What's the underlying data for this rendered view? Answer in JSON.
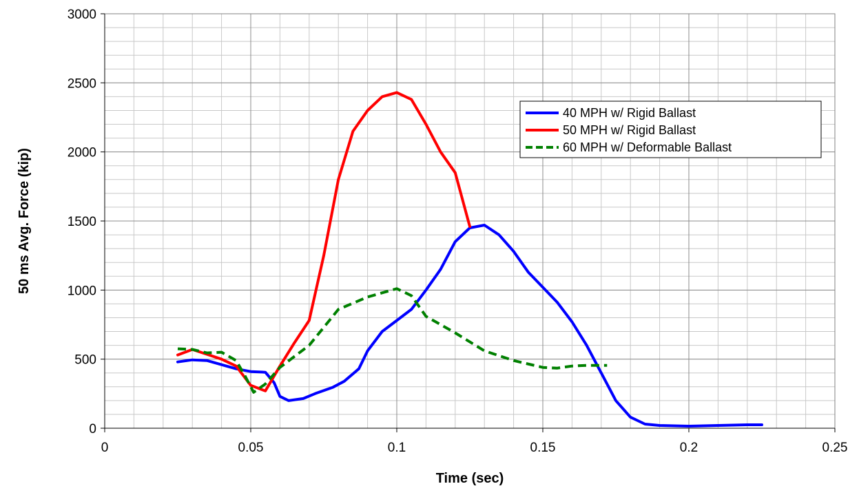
{
  "chart_data": {
    "type": "line",
    "title": "",
    "xlabel": "Time (sec)",
    "ylabel": "50 ms Avg. Force (kip)",
    "xlim": [
      0,
      0.25
    ],
    "ylim": [
      0,
      3000
    ],
    "x_ticks": [
      "0",
      "0.05",
      "0.1",
      "0.15",
      "0.2",
      "0.25"
    ],
    "y_ticks": [
      "0",
      "500",
      "1000",
      "1500",
      "2000",
      "2500",
      "3000"
    ],
    "grid": true,
    "legend_position": "top-right",
    "series": [
      {
        "name": "40 MPH w/ Rigid Ballast",
        "color": "#0000ff",
        "dash": "solid",
        "points": [
          [
            0.025,
            480
          ],
          [
            0.03,
            495
          ],
          [
            0.035,
            490
          ],
          [
            0.04,
            460
          ],
          [
            0.045,
            430
          ],
          [
            0.05,
            410
          ],
          [
            0.055,
            405
          ],
          [
            0.058,
            330
          ],
          [
            0.06,
            230
          ],
          [
            0.063,
            200
          ],
          [
            0.068,
            215
          ],
          [
            0.072,
            250
          ],
          [
            0.078,
            295
          ],
          [
            0.082,
            340
          ],
          [
            0.087,
            430
          ],
          [
            0.09,
            560
          ],
          [
            0.095,
            700
          ],
          [
            0.1,
            780
          ],
          [
            0.105,
            860
          ],
          [
            0.11,
            1000
          ],
          [
            0.115,
            1150
          ],
          [
            0.12,
            1350
          ],
          [
            0.125,
            1450
          ],
          [
            0.13,
            1470
          ],
          [
            0.135,
            1400
          ],
          [
            0.14,
            1280
          ],
          [
            0.145,
            1130
          ],
          [
            0.15,
            1020
          ],
          [
            0.155,
            910
          ],
          [
            0.16,
            770
          ],
          [
            0.165,
            600
          ],
          [
            0.17,
            400
          ],
          [
            0.175,
            200
          ],
          [
            0.18,
            80
          ],
          [
            0.185,
            30
          ],
          [
            0.19,
            20
          ],
          [
            0.2,
            15
          ],
          [
            0.21,
            20
          ],
          [
            0.22,
            25
          ],
          [
            0.225,
            25
          ]
        ]
      },
      {
        "name": "50 MPH w/ Rigid Ballast",
        "color": "#ff0000",
        "dash": "solid",
        "points": [
          [
            0.025,
            530
          ],
          [
            0.03,
            570
          ],
          [
            0.035,
            535
          ],
          [
            0.04,
            500
          ],
          [
            0.045,
            450
          ],
          [
            0.05,
            310
          ],
          [
            0.055,
            270
          ],
          [
            0.06,
            450
          ],
          [
            0.065,
            620
          ],
          [
            0.07,
            780
          ],
          [
            0.075,
            1250
          ],
          [
            0.08,
            1800
          ],
          [
            0.085,
            2150
          ],
          [
            0.09,
            2300
          ],
          [
            0.095,
            2400
          ],
          [
            0.1,
            2430
          ],
          [
            0.105,
            2380
          ],
          [
            0.11,
            2200
          ],
          [
            0.115,
            2000
          ],
          [
            0.12,
            1850
          ],
          [
            0.125,
            1460
          ]
        ]
      },
      {
        "name": "60 MPH w/ Deformable Ballast",
        "color": "#008000",
        "dash": "dashed",
        "points": [
          [
            0.025,
            575
          ],
          [
            0.03,
            570
          ],
          [
            0.035,
            545
          ],
          [
            0.04,
            550
          ],
          [
            0.045,
            490
          ],
          [
            0.048,
            380
          ],
          [
            0.051,
            260
          ],
          [
            0.055,
            320
          ],
          [
            0.06,
            440
          ],
          [
            0.07,
            600
          ],
          [
            0.08,
            860
          ],
          [
            0.09,
            950
          ],
          [
            0.1,
            1010
          ],
          [
            0.105,
            960
          ],
          [
            0.11,
            810
          ],
          [
            0.12,
            690
          ],
          [
            0.13,
            560
          ],
          [
            0.14,
            490
          ],
          [
            0.15,
            440
          ],
          [
            0.155,
            435
          ],
          [
            0.16,
            450
          ],
          [
            0.165,
            455
          ],
          [
            0.172,
            455
          ]
        ]
      }
    ]
  }
}
